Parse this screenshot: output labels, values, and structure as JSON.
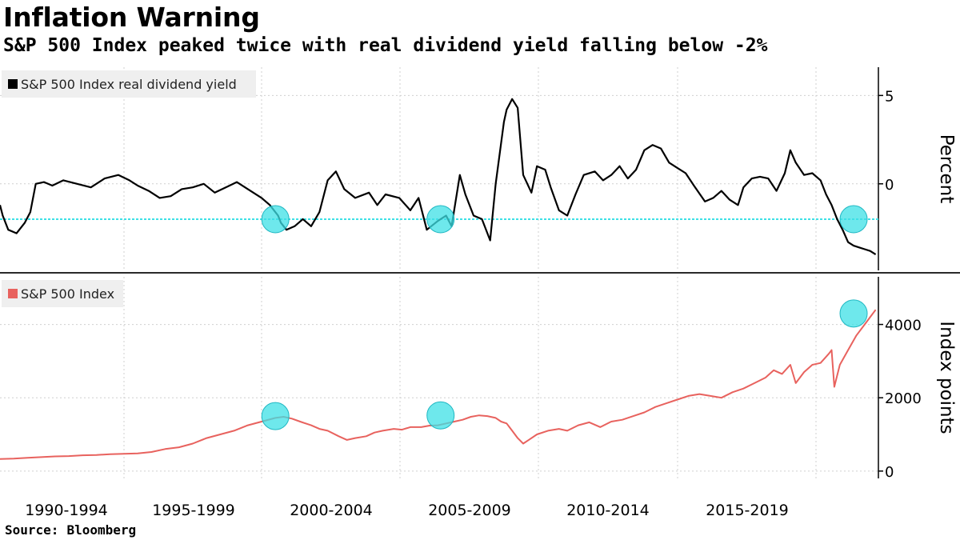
{
  "title": "Inflation Warning",
  "subtitle": "S&P 500 Index peaked twice with real dividend yield falling below -2%",
  "source_label": "Source:",
  "source_value": "Bloomberg",
  "colors": {
    "yield_line": "#000000",
    "index_line": "#e8625e",
    "threshold": "#3ee0e6",
    "highlight_fill": "#3ee0e6",
    "grid": "#cfcfcf",
    "legend_bg": "#efefef"
  },
  "chart_data": [
    {
      "type": "line",
      "legend": "S&P 500 Index real dividend yield",
      "ylabel": "Percent",
      "yticks": [
        0,
        5
      ],
      "ylim": [
        -4.9,
        6.6
      ],
      "xlim": [
        1990.0,
        2021.9
      ],
      "threshold": -2,
      "series": [
        {
          "name": "S&P 500 Index real dividend yield",
          "x": [
            1990.0,
            1990.1,
            1990.3,
            1990.6,
            1990.9,
            1991.1,
            1991.3,
            1991.6,
            1991.9,
            1992.3,
            1992.8,
            1993.3,
            1993.8,
            1994.3,
            1994.7,
            1995.0,
            1995.4,
            1995.8,
            1996.2,
            1996.6,
            1997.0,
            1997.4,
            1997.8,
            1998.2,
            1998.6,
            1999.0,
            1999.5,
            1999.8,
            2000.1,
            2000.2,
            2000.4,
            2000.7,
            2001.0,
            2001.3,
            2001.6,
            2001.9,
            2002.2,
            2002.5,
            2002.9,
            2003.4,
            2003.7,
            2004.0,
            2004.5,
            2004.9,
            2005.2,
            2005.5,
            2005.9,
            2006.2,
            2006.4,
            2006.7,
            2006.9,
            2007.2,
            2007.5,
            2007.8,
            2008.0,
            2008.3,
            2008.4,
            2008.6,
            2008.8,
            2009.0,
            2009.3,
            2009.5,
            2009.8,
            2010.0,
            2010.3,
            2010.6,
            2010.9,
            2011.2,
            2011.6,
            2011.9,
            2012.2,
            2012.5,
            2012.8,
            2013.1,
            2013.4,
            2013.7,
            2014.0,
            2014.3,
            2014.6,
            2014.9,
            2015.2,
            2015.6,
            2015.9,
            2016.2,
            2016.5,
            2016.8,
            2017.0,
            2017.3,
            2017.6,
            2017.9,
            2018.2,
            2018.5,
            2018.7,
            2018.9,
            2019.2,
            2019.5,
            2019.8,
            2020.0,
            2020.2,
            2020.4,
            2020.6,
            2020.8,
            2021.0,
            2021.2,
            2021.4,
            2021.6,
            2021.8
          ],
          "y": [
            -1.2,
            -1.8,
            -2.6,
            -2.8,
            -2.2,
            -1.6,
            0.0,
            0.1,
            -0.1,
            0.2,
            0.0,
            -0.2,
            0.3,
            0.5,
            0.2,
            -0.1,
            -0.4,
            -0.8,
            -0.7,
            -0.3,
            -0.2,
            0.0,
            -0.5,
            -0.2,
            0.1,
            -0.3,
            -0.8,
            -1.2,
            -1.8,
            -2.2,
            -2.6,
            -2.4,
            -2.0,
            -2.4,
            -1.6,
            0.2,
            0.7,
            -0.3,
            -0.8,
            -0.5,
            -1.2,
            -0.6,
            -0.8,
            -1.5,
            -0.8,
            -2.6,
            -2.1,
            -1.8,
            -2.4,
            0.5,
            -0.6,
            -1.8,
            -2.0,
            -3.2,
            0.0,
            3.5,
            4.2,
            4.8,
            4.3,
            0.5,
            -0.5,
            1.0,
            0.8,
            -0.2,
            -1.5,
            -1.8,
            -0.6,
            0.5,
            0.7,
            0.2,
            0.5,
            1.0,
            0.3,
            0.8,
            1.9,
            2.2,
            2.0,
            1.2,
            0.9,
            0.6,
            -0.1,
            -1.0,
            -0.8,
            -0.4,
            -0.9,
            -1.2,
            -0.2,
            0.3,
            0.4,
            0.3,
            -0.4,
            0.6,
            1.9,
            1.2,
            0.5,
            0.6,
            0.2,
            -0.6,
            -1.2,
            -2.0,
            -2.6,
            -3.3,
            -3.5,
            -3.6,
            -3.7,
            -3.8,
            -4.0
          ]
        }
      ],
      "highlights": [
        {
          "x": 2000.0,
          "y": -2.0
        },
        {
          "x": 2006.0,
          "y": -2.0
        },
        {
          "x": 2021.0,
          "y": -2.0
        }
      ]
    },
    {
      "type": "line",
      "legend": "S&P 500 Index",
      "ylabel": "Index points",
      "yticks": [
        0,
        2000,
        4000
      ],
      "ylim": [
        -200,
        5300
      ],
      "xlim": [
        1990.0,
        2021.9
      ],
      "series": [
        {
          "name": "S&P 500 Index",
          "x": [
            1990.0,
            1990.5,
            1991.0,
            1991.5,
            1992.0,
            1992.5,
            1993.0,
            1993.5,
            1994.0,
            1994.5,
            1995.0,
            1995.5,
            1996.0,
            1996.5,
            1997.0,
            1997.5,
            1998.0,
            1998.5,
            1999.0,
            1999.5,
            2000.0,
            2000.3,
            2000.6,
            2000.9,
            2001.3,
            2001.6,
            2001.9,
            2002.3,
            2002.6,
            2002.9,
            2003.3,
            2003.6,
            2003.9,
            2004.3,
            2004.6,
            2004.9,
            2005.3,
            2005.6,
            2005.9,
            2006.2,
            2006.5,
            2006.8,
            2007.1,
            2007.4,
            2007.7,
            2008.0,
            2008.2,
            2008.4,
            2008.6,
            2008.8,
            2009.0,
            2009.2,
            2009.5,
            2009.9,
            2010.3,
            2010.6,
            2011.0,
            2011.4,
            2011.8,
            2012.2,
            2012.6,
            2013.0,
            2013.4,
            2013.8,
            2014.2,
            2014.6,
            2015.0,
            2015.4,
            2015.8,
            2016.2,
            2016.6,
            2017.0,
            2017.4,
            2017.8,
            2018.1,
            2018.4,
            2018.7,
            2018.9,
            2019.2,
            2019.5,
            2019.8,
            2020.1,
            2020.2,
            2020.3,
            2020.5,
            2020.8,
            2021.1,
            2021.4,
            2021.6,
            2021.8
          ],
          "y": [
            330,
            340,
            360,
            380,
            400,
            410,
            430,
            440,
            460,
            470,
            480,
            520,
            600,
            650,
            750,
            900,
            1000,
            1100,
            1250,
            1350,
            1450,
            1480,
            1430,
            1350,
            1250,
            1150,
            1100,
            950,
            850,
            900,
            950,
            1050,
            1100,
            1150,
            1130,
            1200,
            1200,
            1240,
            1250,
            1300,
            1350,
            1400,
            1480,
            1520,
            1500,
            1450,
            1350,
            1300,
            1100,
            900,
            750,
            850,
            1000,
            1100,
            1150,
            1100,
            1250,
            1330,
            1200,
            1350,
            1400,
            1500,
            1600,
            1750,
            1850,
            1950,
            2050,
            2100,
            2050,
            2000,
            2150,
            2250,
            2400,
            2550,
            2750,
            2650,
            2900,
            2400,
            2700,
            2900,
            2950,
            3200,
            3300,
            2300,
            2900,
            3300,
            3700,
            4000,
            4200,
            4400
          ]
        }
      ],
      "highlights": [
        {
          "x": 2000.0,
          "y": 1500
        },
        {
          "x": 2006.0,
          "y": 1520
        },
        {
          "x": 2021.0,
          "y": 4300
        }
      ]
    }
  ],
  "x_tick_labels": [
    "1990-1994",
    "1995-1999",
    "2000-2004",
    "2005-2009",
    "2010-2014",
    "2015-2019"
  ]
}
